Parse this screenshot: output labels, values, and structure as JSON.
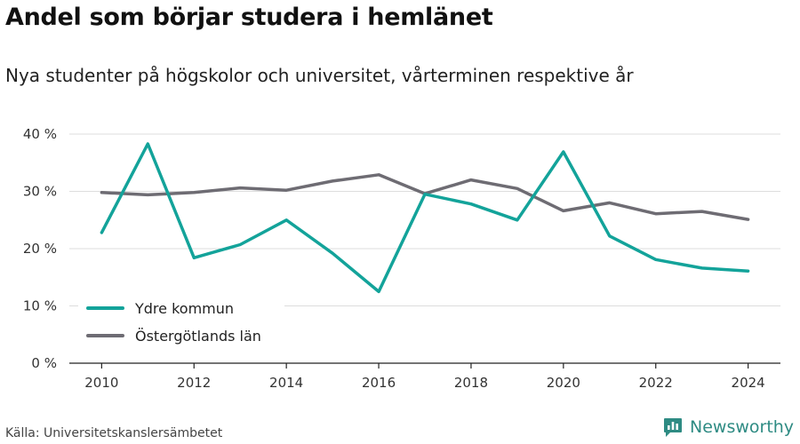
{
  "header": {
    "title": "Andel som börjar studera i hemlänet",
    "subtitle": "Nya studenter på högskolor och universitet, vårterminen respektive år"
  },
  "footer": {
    "source": "Källa: Universitetskanslersämbetet",
    "brand": "Newsworthy"
  },
  "colors": {
    "ydre": "#13a39a",
    "lan": "#6e6c73",
    "grid": "#dddddd",
    "axis": "#222222",
    "brand": "#2e8b83"
  },
  "chart_data": {
    "type": "line",
    "title": "Andel som börjar studera i hemlänet",
    "subtitle": "Nya studenter på högskolor och universitet, vårterminen respektive år",
    "xlabel": "",
    "ylabel": "",
    "x": [
      2010,
      2011,
      2012,
      2013,
      2014,
      2015,
      2016,
      2017,
      2018,
      2019,
      2020,
      2021,
      2022,
      2023,
      2024
    ],
    "xlim": [
      2009.3,
      2024.7
    ],
    "ylim": [
      0,
      40
    ],
    "x_ticks": [
      2010,
      2012,
      2014,
      2016,
      2018,
      2020,
      2022,
      2024
    ],
    "x_tick_labels": [
      "2010",
      "2012",
      "2014",
      "2016",
      "2018",
      "2020",
      "2022",
      "2024"
    ],
    "y_ticks": [
      0,
      10,
      20,
      30,
      40
    ],
    "y_tick_labels": [
      "0 %",
      "10 %",
      "20 %",
      "30 %",
      "40 %"
    ],
    "grid": true,
    "legend_position": "bottom-left",
    "series": [
      {
        "name": "Ydre kommun",
        "color": "#13a39a",
        "values": [
          22.8,
          38.3,
          18.4,
          20.7,
          25.0,
          19.2,
          12.5,
          29.5,
          27.8,
          25.0,
          36.9,
          22.2,
          18.1,
          16.6,
          16.1
        ]
      },
      {
        "name": "Östergötlands län",
        "color": "#6e6c73",
        "values": [
          29.8,
          29.4,
          29.8,
          30.6,
          30.2,
          31.8,
          32.9,
          29.6,
          32.0,
          30.5,
          26.6,
          28.0,
          26.1,
          26.5,
          25.1
        ]
      }
    ]
  }
}
